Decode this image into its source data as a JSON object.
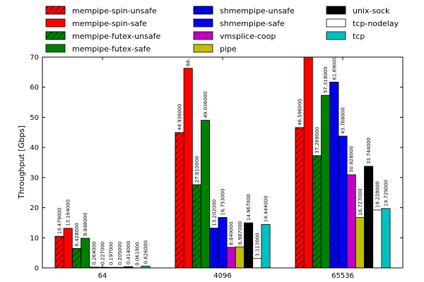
{
  "chart_data": {
    "type": "bar",
    "ylabel": "Throughput [Gbps]",
    "xlabel": "",
    "ylim": [
      0,
      70
    ],
    "yticks": [
      0,
      10,
      20,
      30,
      40,
      50,
      60,
      70
    ],
    "categories": [
      "64",
      "4096",
      "65536"
    ],
    "legend_placement": "top",
    "series": [
      {
        "name": "mempipe-spin-unsafe",
        "color": "#ff0000",
        "hatch": true,
        "values": [
          10.479,
          44.936,
          46.596
        ],
        "labels": [
          "10.479000",
          "44.936000",
          "46.596000"
        ]
      },
      {
        "name": "mempipe-spin-safe",
        "color": "#ff0000",
        "hatch": false,
        "values": [
          13.164,
          66.3,
          70.5
        ],
        "labels": [
          "13.164000",
          "66.",
          ""
        ]
      },
      {
        "name": "mempipe-futex-unsafe",
        "color": "#008000",
        "hatch": true,
        "values": [
          6.428,
          27.61,
          37.269
        ],
        "labels": [
          "6.428000",
          "27.610000",
          "37.269000"
        ]
      },
      {
        "name": "mempipe-futex-safe",
        "color": "#008000",
        "hatch": false,
        "values": [
          9.848,
          49.036,
          57.318
        ],
        "labels": [
          "9.848000",
          "49.036000",
          "57.318000"
        ]
      },
      {
        "name": "shmempipe-unsafe",
        "color": "#0000ff",
        "hatch": true,
        "values": [
          0.264,
          13.202,
          61.69
        ],
        "labels": [
          "0.264000",
          "13.202000",
          "61.69000"
        ]
      },
      {
        "name": "shmempipe-safe",
        "color": "#0000ff",
        "hatch": false,
        "values": [
          0.227,
          16.753,
          43.768
        ],
        "labels": [
          "0.227000",
          "16.753000",
          "43.768000"
        ]
      },
      {
        "name": "vmsplice-coop",
        "color": "#c000c0",
        "hatch": false,
        "values": [
          0.197,
          6.849,
          30.928
        ],
        "labels": [
          "0.197000",
          "6.849000",
          "30.928000"
        ]
      },
      {
        "name": "pipe",
        "color": "#c0c000",
        "hatch": false,
        "values": [
          0.205,
          6.987,
          16.727
        ],
        "labels": [
          "0.205000",
          "6.987000",
          "16.727000"
        ]
      },
      {
        "name": "unix-sock",
        "color": "#000000",
        "hatch": false,
        "values": [
          0.414,
          14.967,
          33.744
        ],
        "labels": [
          "0.414000",
          "14.967000",
          "33.744000"
        ]
      },
      {
        "name": "tcp-nodelay",
        "color": "#ffffff",
        "hatch": false,
        "values": [
          0.061,
          3.113,
          19.228
        ],
        "labels": [
          "0.061000",
          "3.113000",
          "19.228000"
        ]
      },
      {
        "name": "tcp",
        "color": "#00c0c0",
        "hatch": false,
        "values": [
          0.626,
          14.444,
          19.729
        ],
        "labels": [
          "0.626000",
          "14.444000",
          "19.729000"
        ]
      }
    ]
  }
}
